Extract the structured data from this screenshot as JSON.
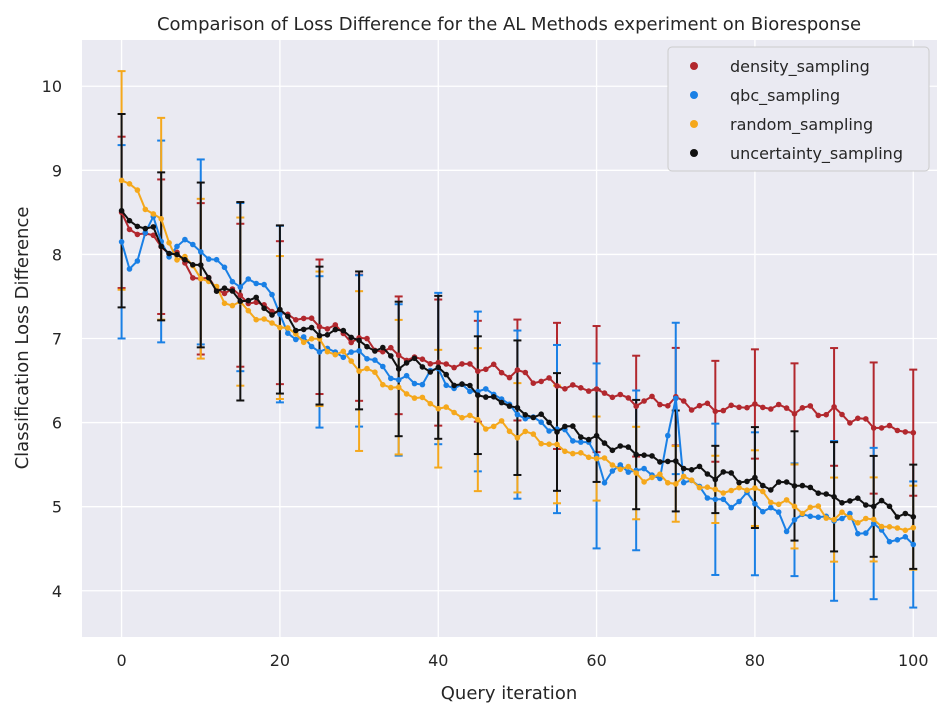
{
  "chart_data": {
    "type": "line",
    "title": "Comparison of Loss Difference for the AL Methods experiment on Bioresponse",
    "xlabel": "Query iteration",
    "ylabel": "Classification Loss Difference",
    "xlim": [
      -5,
      103
    ],
    "ylim": [
      3.45,
      10.55
    ],
    "xticks": [
      0,
      20,
      40,
      60,
      80,
      100
    ],
    "yticks": [
      4,
      5,
      6,
      7,
      8,
      9,
      10
    ],
    "grid": true,
    "legend_position": "top-right",
    "errorbar_every": 5,
    "series": [
      {
        "name": "density_sampling",
        "color": "#b2282e",
        "keypoints": [
          [
            0,
            8.5
          ],
          [
            1,
            8.28
          ],
          [
            3,
            8.25
          ],
          [
            5,
            8.12
          ],
          [
            7,
            7.97
          ],
          [
            10,
            7.7
          ],
          [
            15,
            7.5
          ],
          [
            20,
            7.3
          ],
          [
            25,
            7.18
          ],
          [
            30,
            6.98
          ],
          [
            35,
            6.8
          ],
          [
            40,
            6.7
          ],
          [
            45,
            6.66
          ],
          [
            50,
            6.58
          ],
          [
            55,
            6.45
          ],
          [
            60,
            6.38
          ],
          [
            65,
            6.25
          ],
          [
            70,
            6.25
          ],
          [
            75,
            6.16
          ],
          [
            80,
            6.2
          ],
          [
            85,
            6.16
          ],
          [
            90,
            6.12
          ],
          [
            95,
            5.97
          ],
          [
            100,
            5.88
          ]
        ],
        "err": [
          [
            0,
            0.9
          ],
          [
            5,
            0.8
          ],
          [
            10,
            0.9
          ],
          [
            15,
            0.85
          ],
          [
            20,
            0.85
          ],
          [
            25,
            0.8
          ],
          [
            30,
            0.75
          ],
          [
            35,
            0.7
          ],
          [
            40,
            0.75
          ],
          [
            45,
            0.6
          ],
          [
            50,
            0.6
          ],
          [
            55,
            0.75
          ],
          [
            60,
            0.75
          ],
          [
            65,
            0.6
          ],
          [
            70,
            0.58
          ],
          [
            75,
            0.6
          ],
          [
            80,
            0.65
          ],
          [
            85,
            0.6
          ],
          [
            90,
            0.7
          ],
          [
            95,
            0.78
          ],
          [
            100,
            0.75
          ]
        ]
      },
      {
        "name": "qbc_sampling",
        "color": "#1a80e5",
        "keypoints": [
          [
            0,
            8.15
          ],
          [
            1,
            7.88
          ],
          [
            2,
            7.95
          ],
          [
            4,
            8.45
          ],
          [
            6,
            7.95
          ],
          [
            8,
            8.2
          ],
          [
            10,
            8.02
          ],
          [
            12,
            7.92
          ],
          [
            15,
            7.62
          ],
          [
            18,
            7.7
          ],
          [
            20,
            7.25
          ],
          [
            22,
            7.0
          ],
          [
            25,
            6.88
          ],
          [
            28,
            6.8
          ],
          [
            30,
            6.85
          ],
          [
            33,
            6.65
          ],
          [
            35,
            6.5
          ],
          [
            38,
            6.5
          ],
          [
            40,
            6.62
          ],
          [
            42,
            6.4
          ],
          [
            45,
            6.4
          ],
          [
            48,
            6.3
          ],
          [
            50,
            6.1
          ],
          [
            53,
            6.0
          ],
          [
            55,
            5.9
          ],
          [
            58,
            5.8
          ],
          [
            60,
            5.6
          ],
          [
            61,
            5.35
          ],
          [
            63,
            5.45
          ],
          [
            65,
            5.45
          ],
          [
            68,
            5.35
          ],
          [
            70,
            6.3
          ],
          [
            71,
            5.3
          ],
          [
            73,
            5.25
          ],
          [
            75,
            5.05
          ],
          [
            77,
            5.05
          ],
          [
            79,
            5.1
          ],
          [
            81,
            5.0
          ],
          [
            83,
            4.9
          ],
          [
            84,
            4.75
          ],
          [
            85,
            4.85
          ],
          [
            87,
            4.9
          ],
          [
            90,
            4.85
          ],
          [
            92,
            4.88
          ],
          [
            93,
            4.7
          ],
          [
            95,
            4.75
          ],
          [
            98,
            4.6
          ],
          [
            100,
            4.55
          ]
        ],
        "err": [
          [
            0,
            1.15
          ],
          [
            5,
            1.2
          ],
          [
            10,
            1.1
          ],
          [
            15,
            1.0
          ],
          [
            20,
            1.05
          ],
          [
            25,
            0.9
          ],
          [
            30,
            0.9
          ],
          [
            35,
            0.9
          ],
          [
            40,
            0.9
          ],
          [
            45,
            0.95
          ],
          [
            50,
            1.0
          ],
          [
            55,
            1.0
          ],
          [
            60,
            1.1
          ],
          [
            65,
            0.95
          ],
          [
            70,
            0.9
          ],
          [
            75,
            0.9
          ],
          [
            80,
            0.85
          ],
          [
            85,
            0.67
          ],
          [
            90,
            0.95
          ],
          [
            95,
            0.9
          ],
          [
            100,
            0.75
          ]
        ]
      },
      {
        "name": "random_sampling",
        "color": "#f5a81c",
        "keypoints": [
          [
            0,
            8.88
          ],
          [
            1,
            8.82
          ],
          [
            2,
            8.75
          ],
          [
            3,
            8.58
          ],
          [
            5,
            8.37
          ],
          [
            7,
            7.98
          ],
          [
            10,
            7.78
          ],
          [
            13,
            7.45
          ],
          [
            15,
            7.4
          ],
          [
            17,
            7.25
          ],
          [
            20,
            7.15
          ],
          [
            23,
            7.0
          ],
          [
            25,
            6.95
          ],
          [
            28,
            6.78
          ],
          [
            30,
            6.68
          ],
          [
            32,
            6.55
          ],
          [
            35,
            6.38
          ],
          [
            38,
            6.28
          ],
          [
            40,
            6.18
          ],
          [
            43,
            6.1
          ],
          [
            45,
            6.0
          ],
          [
            48,
            5.95
          ],
          [
            50,
            5.88
          ],
          [
            53,
            5.8
          ],
          [
            55,
            5.7
          ],
          [
            58,
            5.62
          ],
          [
            60,
            5.58
          ],
          [
            63,
            5.48
          ],
          [
            65,
            5.38
          ],
          [
            68,
            5.32
          ],
          [
            70,
            5.32
          ],
          [
            73,
            5.28
          ],
          [
            75,
            5.17
          ],
          [
            77,
            5.2
          ],
          [
            80,
            5.22
          ],
          [
            82,
            5.08
          ],
          [
            85,
            5.0
          ],
          [
            88,
            4.95
          ],
          [
            90,
            4.88
          ],
          [
            93,
            4.86
          ],
          [
            95,
            4.82
          ],
          [
            98,
            4.73
          ],
          [
            100,
            4.75
          ]
        ],
        "err": [
          [
            0,
            1.3
          ],
          [
            5,
            1.2
          ],
          [
            10,
            0.95
          ],
          [
            15,
            1.0
          ],
          [
            20,
            0.85
          ],
          [
            25,
            0.8
          ],
          [
            30,
            0.95
          ],
          [
            35,
            0.8
          ],
          [
            40,
            0.7
          ],
          [
            45,
            0.85
          ],
          [
            50,
            0.65
          ],
          [
            55,
            0.7
          ],
          [
            60,
            0.5
          ],
          [
            65,
            0.55
          ],
          [
            70,
            0.45
          ],
          [
            75,
            0.4
          ],
          [
            80,
            0.45
          ],
          [
            85,
            0.5
          ],
          [
            90,
            0.5
          ],
          [
            95,
            0.5
          ],
          [
            100,
            0.5
          ]
        ]
      },
      {
        "name": "uncertainty_sampling",
        "color": "#111111",
        "keypoints": [
          [
            0,
            8.52
          ],
          [
            1,
            8.35
          ],
          [
            2,
            8.38
          ],
          [
            4,
            8.28
          ],
          [
            5,
            8.1
          ],
          [
            7,
            7.98
          ],
          [
            10,
            7.85
          ],
          [
            12,
            7.6
          ],
          [
            15,
            7.5
          ],
          [
            18,
            7.38
          ],
          [
            20,
            7.3
          ],
          [
            22,
            7.15
          ],
          [
            25,
            7.05
          ],
          [
            28,
            7.1
          ],
          [
            30,
            6.95
          ],
          [
            33,
            6.85
          ],
          [
            35,
            6.7
          ],
          [
            38,
            6.7
          ],
          [
            40,
            6.6
          ],
          [
            43,
            6.45
          ],
          [
            45,
            6.35
          ],
          [
            48,
            6.25
          ],
          [
            50,
            6.15
          ],
          [
            53,
            6.05
          ],
          [
            55,
            5.95
          ],
          [
            58,
            5.88
          ],
          [
            60,
            5.78
          ],
          [
            63,
            5.7
          ],
          [
            65,
            5.65
          ],
          [
            68,
            5.55
          ],
          [
            70,
            5.52
          ],
          [
            72,
            5.45
          ],
          [
            75,
            5.38
          ],
          [
            78,
            5.35
          ],
          [
            80,
            5.28
          ],
          [
            82,
            5.25
          ],
          [
            85,
            5.28
          ],
          [
            88,
            5.18
          ],
          [
            90,
            5.1
          ],
          [
            93,
            5.05
          ],
          [
            95,
            5.05
          ],
          [
            97,
            4.98
          ],
          [
            100,
            4.88
          ]
        ],
        "err": [
          [
            0,
            1.15
          ],
          [
            5,
            0.88
          ],
          [
            10,
            0.98
          ],
          [
            15,
            1.18
          ],
          [
            20,
            1.0
          ],
          [
            25,
            0.82
          ],
          [
            30,
            0.82
          ],
          [
            35,
            0.8
          ],
          [
            40,
            0.85
          ],
          [
            45,
            0.7
          ],
          [
            50,
            0.8
          ],
          [
            55,
            0.7
          ],
          [
            60,
            0.55
          ],
          [
            65,
            0.65
          ],
          [
            70,
            0.6
          ],
          [
            75,
            0.4
          ],
          [
            80,
            0.6
          ],
          [
            85,
            0.65
          ],
          [
            90,
            0.65
          ],
          [
            95,
            0.6
          ],
          [
            100,
            0.62
          ]
        ]
      }
    ]
  }
}
